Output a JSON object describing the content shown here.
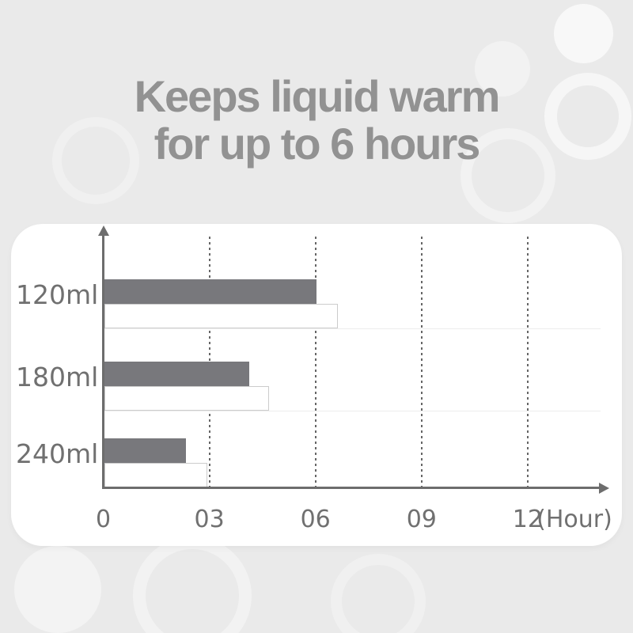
{
  "page": {
    "background_color": "#eaeaea",
    "card_color": "#ffffff"
  },
  "title": {
    "line1": "Keeps liquid warm",
    "line2": "for up to 6 hours",
    "color": "#929292"
  },
  "chart_data": {
    "type": "bar",
    "orientation": "horizontal",
    "title": "Keeps liquid warm for up to 6 hours",
    "categories": [
      "120ml",
      "180ml",
      "240ml"
    ],
    "series": [
      {
        "name": "filled-bar",
        "style": "solid",
        "color": "#78787c",
        "values": [
          6.0,
          4.1,
          2.3
        ]
      },
      {
        "name": "outline-bar",
        "style": "outline",
        "color": "#ffffff",
        "border_color": "#cccccc",
        "values": [
          6.6,
          4.65,
          2.9
        ]
      }
    ],
    "x_ticks": [
      {
        "label": "0",
        "hour": 0
      },
      {
        "label": "03",
        "hour": 3
      },
      {
        "label": "06",
        "hour": 6
      },
      {
        "label": "09",
        "hour": 9
      },
      {
        "label": "12",
        "hour": 12
      }
    ],
    "x_unit": "(Hour)",
    "xlim": [
      0,
      12
    ],
    "xlabel": "",
    "ylabel": "",
    "grid": "dashed-vertical",
    "legend": "none",
    "axis_color": "#6d6d6d",
    "grid_color": "#666666",
    "label_color": "#707070"
  }
}
